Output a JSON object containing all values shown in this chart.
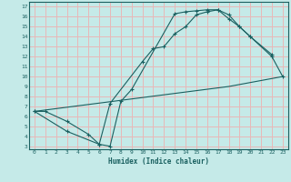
{
  "xlabel": "Humidex (Indice chaleur)",
  "xlim": [
    -0.5,
    23.5
  ],
  "ylim": [
    2.7,
    17.5
  ],
  "yticks": [
    3,
    4,
    5,
    6,
    7,
    8,
    9,
    10,
    11,
    12,
    13,
    14,
    15,
    16,
    17
  ],
  "xticks": [
    0,
    1,
    2,
    3,
    4,
    5,
    6,
    7,
    8,
    9,
    10,
    11,
    12,
    13,
    14,
    15,
    16,
    17,
    18,
    19,
    20,
    21,
    22,
    23
  ],
  "bg_color": "#c5eae8",
  "grid_color": "#e8b8b8",
  "line_color": "#1a6060",
  "line1_x": [
    0,
    1,
    3,
    5,
    6,
    7,
    8,
    9,
    13,
    14,
    15,
    16,
    17,
    18,
    19,
    20,
    22
  ],
  "line1_y": [
    6.5,
    6.5,
    5.5,
    4.2,
    3.2,
    3.0,
    7.5,
    8.7,
    16.3,
    16.5,
    16.6,
    16.7,
    16.7,
    15.8,
    15.0,
    14.0,
    12.2
  ],
  "line2_x": [
    0,
    3,
    6,
    7,
    10,
    11,
    12,
    13,
    14,
    15,
    16,
    17,
    18,
    19,
    20,
    22,
    23
  ],
  "line2_y": [
    6.5,
    4.5,
    3.2,
    7.3,
    11.5,
    12.8,
    13.0,
    14.3,
    15.0,
    16.2,
    16.5,
    16.7,
    16.2,
    15.0,
    14.0,
    12.0,
    10.0
  ],
  "line3_x": [
    0,
    18,
    23
  ],
  "line3_y": [
    6.5,
    9.0,
    10.0
  ]
}
